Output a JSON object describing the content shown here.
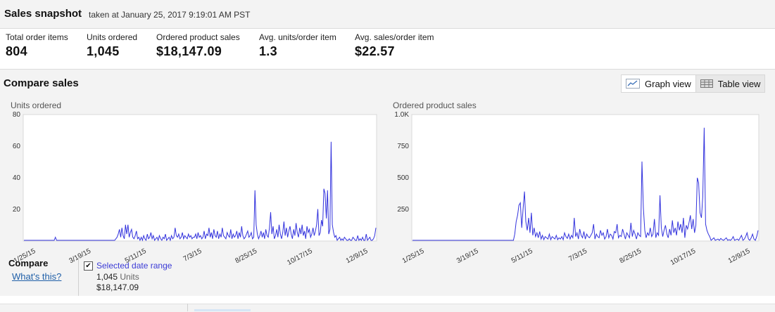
{
  "snapshot": {
    "title": "Sales snapshot",
    "taken_at": "taken at January 25, 2017 9:19:01 AM PST"
  },
  "metrics": [
    {
      "label": "Total order items",
      "value": "804"
    },
    {
      "label": "Units ordered",
      "value": "1,045"
    },
    {
      "label": "Ordered product sales",
      "value": "$18,147.09"
    },
    {
      "label": "Avg. units/order item",
      "value": "1.3"
    },
    {
      "label": "Avg. sales/order item",
      "value": "$22.57"
    }
  ],
  "compare": {
    "title": "Compare sales",
    "graph_view_label": "Graph view",
    "table_view_label": "Table view",
    "footer_label": "Compare",
    "whats_this": "What's this?",
    "legend": {
      "name": "Selected date range",
      "units_value": "1,045",
      "units_word": "Units",
      "sales_value": "$18,147.09"
    }
  },
  "colors": {
    "line": "#3333dd",
    "link": "#1f5fa8"
  },
  "chart_data": [
    {
      "type": "line",
      "title": "Units ordered",
      "ylim": [
        0,
        80
      ],
      "yticks": [
        20,
        40,
        60,
        80
      ],
      "xtick_labels": [
        "1/25/15",
        "3/19/15",
        "5/11/15",
        "7/3/15",
        "8/25/15",
        "10/17/15",
        "12/9/15"
      ],
      "series": [
        {
          "values": [
            0,
            0,
            0,
            0,
            0,
            0,
            0,
            0,
            0,
            0,
            0,
            0,
            0,
            0,
            0,
            0,
            0,
            0,
            0,
            0,
            0,
            0,
            0,
            0,
            0,
            0,
            2,
            0,
            0,
            0,
            0,
            0,
            0,
            0,
            0,
            0,
            0,
            0,
            0,
            0,
            0,
            0,
            0,
            0,
            0,
            0,
            0,
            0,
            0,
            0,
            0,
            0,
            0,
            0,
            0,
            0,
            0,
            0,
            0,
            0,
            0,
            0,
            0,
            0,
            0,
            0,
            0,
            0,
            0,
            0,
            0,
            0,
            0,
            0,
            0,
            0,
            1,
            2,
            4,
            7,
            2,
            8,
            3,
            1,
            10,
            4,
            10,
            2,
            5,
            7,
            2,
            1,
            3,
            6,
            1,
            2,
            0,
            2,
            0,
            3,
            1,
            0,
            4,
            1,
            2,
            5,
            1,
            3,
            0,
            1,
            2,
            0,
            3,
            1,
            0,
            2,
            1,
            4,
            0,
            1,
            2,
            0,
            3,
            1,
            2,
            8,
            3,
            2,
            4,
            1,
            2,
            5,
            1,
            3,
            2,
            1,
            4,
            2,
            3,
            1,
            2,
            2,
            4,
            1,
            5,
            2,
            3,
            1,
            2,
            6,
            1,
            4,
            3,
            8,
            2,
            5,
            1,
            7,
            3,
            2,
            6,
            1,
            4,
            2,
            8,
            3,
            2,
            1,
            5,
            3,
            2,
            7,
            1,
            4,
            2,
            3,
            6,
            1,
            5,
            2,
            9,
            3,
            1,
            2,
            4,
            6,
            2,
            3,
            5,
            1,
            2,
            32,
            10,
            4,
            1,
            3,
            6,
            2,
            5,
            1,
            7,
            3,
            2,
            8,
            18,
            4,
            9,
            1,
            3,
            7,
            2,
            10,
            4,
            1,
            5,
            12,
            3,
            8,
            2,
            6,
            9,
            4,
            1,
            7,
            3,
            11,
            5,
            2,
            8,
            4,
            10,
            3,
            6,
            1,
            9,
            5,
            7,
            2,
            4,
            8,
            3,
            6,
            10,
            20,
            3,
            5,
            13,
            9,
            33,
            30,
            14,
            32,
            4,
            7,
            63,
            10,
            5,
            2,
            3,
            0,
            1,
            2,
            0,
            1,
            0,
            2,
            1,
            0,
            0,
            1,
            0,
            0,
            2,
            1,
            0,
            0,
            3,
            0,
            1,
            0,
            2,
            0,
            0,
            4,
            0,
            1,
            2,
            0,
            0,
            1,
            3,
            8
          ]
        }
      ]
    },
    {
      "type": "line",
      "title": "Ordered product sales",
      "ylim": [
        0,
        1000
      ],
      "yticks": [
        250,
        500,
        750,
        1000
      ],
      "ytick_labels": [
        "250",
        "500",
        "750",
        "1.0K"
      ],
      "xtick_labels": [
        "1/25/15",
        "3/19/15",
        "5/11/15",
        "7/3/15",
        "8/25/15",
        "10/17/15",
        "12/9/15"
      ],
      "series": [
        {
          "values": [
            0,
            0,
            0,
            0,
            0,
            0,
            0,
            0,
            0,
            0,
            0,
            0,
            0,
            0,
            0,
            0,
            0,
            0,
            0,
            0,
            0,
            0,
            0,
            0,
            0,
            0,
            0,
            0,
            0,
            0,
            0,
            0,
            0,
            0,
            0,
            0,
            0,
            0,
            0,
            0,
            0,
            0,
            0,
            0,
            0,
            0,
            0,
            0,
            0,
            0,
            0,
            0,
            0,
            0,
            0,
            0,
            0,
            0,
            0,
            0,
            0,
            0,
            0,
            0,
            0,
            0,
            0,
            0,
            0,
            0,
            0,
            0,
            0,
            0,
            50,
            150,
            200,
            280,
            300,
            100,
            250,
            390,
            150,
            80,
            180,
            60,
            220,
            40,
            100,
            30,
            60,
            20,
            70,
            10,
            40,
            5,
            30,
            20,
            10,
            50,
            5,
            30,
            20,
            10,
            40,
            5,
            20,
            10,
            30,
            5,
            60,
            30,
            15,
            50,
            10,
            40,
            20,
            180,
            30,
            60,
            10,
            90,
            40,
            20,
            70,
            10,
            50,
            30,
            20,
            40,
            60,
            130,
            10,
            50,
            30,
            20,
            80,
            40,
            60,
            10,
            30,
            90,
            20,
            50,
            40,
            10,
            70,
            60,
            130,
            20,
            40,
            30,
            90,
            50,
            10,
            60,
            40,
            20,
            140,
            30,
            80,
            50,
            10,
            60,
            40,
            30,
            630,
            260,
            80,
            20,
            60,
            40,
            100,
            30,
            50,
            170,
            20,
            60,
            40,
            360,
            100,
            30,
            80,
            120,
            50,
            20,
            90,
            40,
            160,
            60,
            100,
            40,
            150,
            80,
            130,
            60,
            180,
            20,
            120,
            90,
            140,
            200,
            90,
            170,
            60,
            120,
            500,
            460,
            220,
            180,
            350,
            900,
            130,
            80,
            50,
            30,
            0,
            10,
            20,
            0,
            5,
            10,
            0,
            15,
            5,
            0,
            10,
            20,
            0,
            5,
            0,
            10,
            30,
            0,
            5,
            10,
            0,
            20,
            40,
            0,
            10,
            30,
            60,
            10,
            0,
            20,
            50,
            10,
            0,
            30,
            80
          ]
        }
      ]
    }
  ]
}
